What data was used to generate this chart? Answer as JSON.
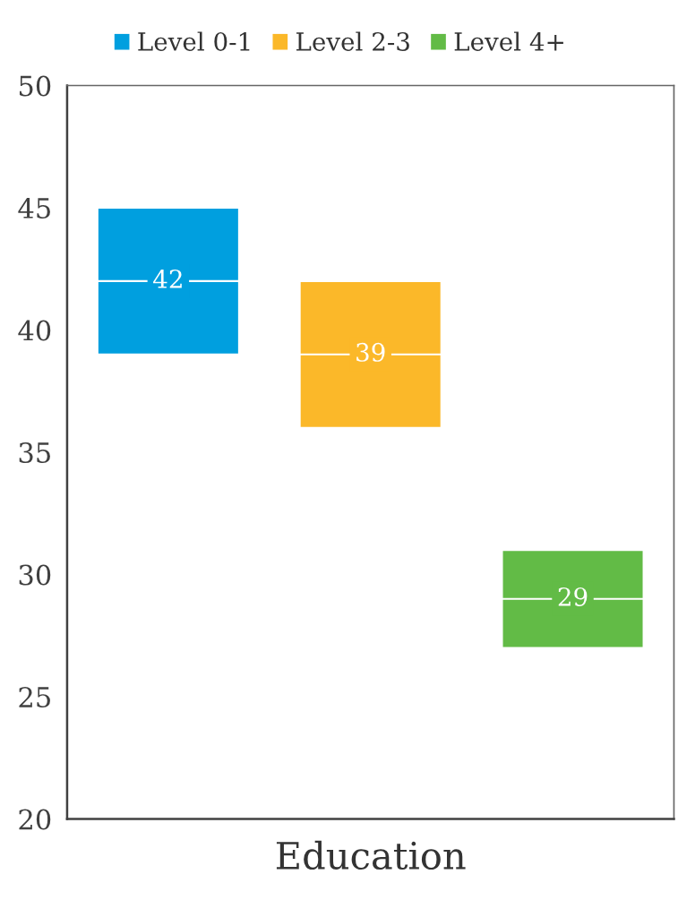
{
  "chart_data": {
    "type": "box",
    "xlabel": "Education",
    "categories": [
      null,
      null,
      null
    ],
    "series": [
      {
        "name": "Level 0-1",
        "color": "#009fdf",
        "boxes": [
          {
            "low": 39,
            "q1": 39,
            "median": 42,
            "q3": 45,
            "high": 45
          },
          null,
          null
        ],
        "value_labels": [
          "42",
          null,
          null
        ]
      },
      {
        "name": "Level 2-3",
        "color": "#fbb829",
        "boxes": [
          null,
          {
            "low": 36,
            "q1": 36,
            "median": 39,
            "q3": 42,
            "high": 42
          },
          null
        ],
        "value_labels": [
          null,
          "39",
          null
        ]
      },
      {
        "name": "Level 4+",
        "color": "#62bb46",
        "boxes": [
          null,
          null,
          {
            "low": 27,
            "q1": 27,
            "median": 29,
            "q3": 31,
            "high": 31
          }
        ],
        "value_labels": [
          null,
          null,
          "29"
        ]
      }
    ],
    "ylim": [
      20,
      50
    ],
    "yticks": [
      20,
      25,
      30,
      35,
      40,
      45,
      50
    ],
    "grid": false,
    "legend": "top"
  }
}
